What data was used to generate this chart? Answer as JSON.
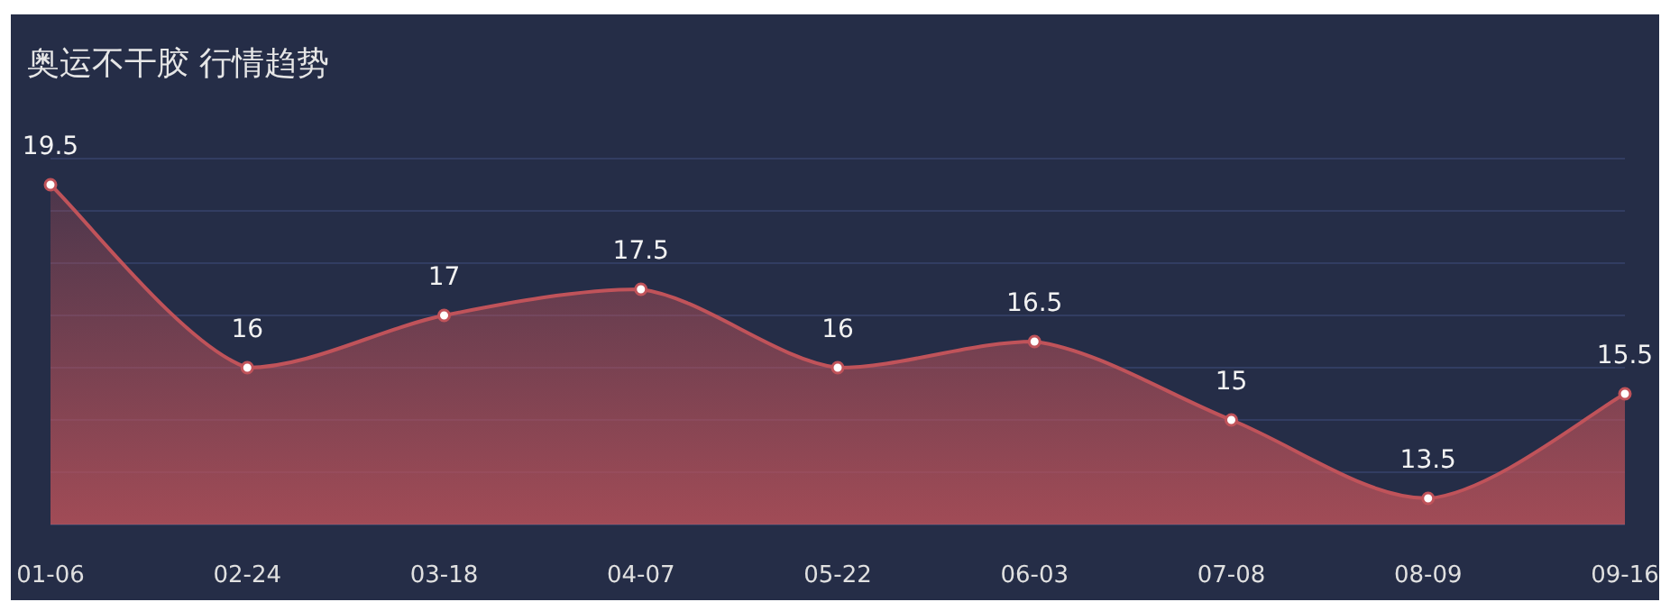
{
  "chart_data": {
    "type": "area",
    "title": "奥运不干胶 行情趋势",
    "categories": [
      "01-06",
      "02-24",
      "03-18",
      "04-07",
      "05-22",
      "06-03",
      "07-08",
      "08-09",
      "09-16"
    ],
    "series": [
      {
        "color": "#c0535a",
        "values": [
          19.5,
          16,
          17,
          17.5,
          16,
          16.5,
          15,
          13.5,
          15.5
        ]
      }
    ],
    "data_labels": true,
    "marker": "circle",
    "grid": "y",
    "tick_labels": "x",
    "ylim": [
      13,
      20
    ],
    "yticks": [
      {
        "value": 14,
        "label": null
      },
      {
        "value": 15,
        "label": null
      },
      {
        "value": 16,
        "label": null
      },
      {
        "value": 17,
        "label": null
      },
      {
        "value": 18,
        "label": null
      },
      {
        "value": 19,
        "label": null
      },
      {
        "value": 20,
        "label": null
      }
    ]
  }
}
